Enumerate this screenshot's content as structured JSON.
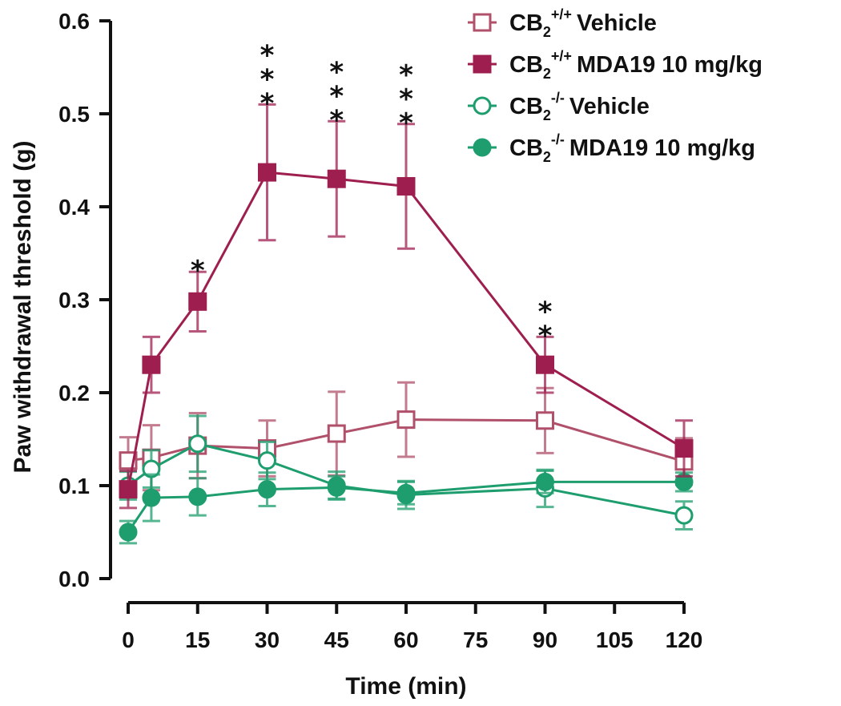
{
  "chart_data": {
    "type": "line",
    "title": "",
    "xlabel": "Time (min)",
    "ylabel": "Paw withdrawal threshold (g)",
    "xlim": [
      0,
      120
    ],
    "ylim": [
      0,
      0.6
    ],
    "x_ticks": [
      0,
      15,
      30,
      45,
      60,
      75,
      90,
      105,
      120
    ],
    "x_tick_labels": [
      "0",
      "15",
      "30",
      "45",
      "60",
      "75",
      "90",
      "105",
      "120"
    ],
    "y_ticks": [
      0.0,
      0.1,
      0.2,
      0.3,
      0.4,
      0.5,
      0.6
    ],
    "y_tick_labels": [
      "0.0",
      "0.1",
      "0.2",
      "0.3",
      "0.4",
      "0.5",
      "0.6"
    ],
    "grid": false,
    "legend_position": "top-right",
    "series": [
      {
        "name": "CB2+/+ Vehicle",
        "legend": {
          "base": "CB",
          "sub": "2",
          "sup": "+/+",
          "text": "Vehicle"
        },
        "color": "#b0506a",
        "marker": "square",
        "filled": false,
        "x": [
          0,
          5,
          15,
          30,
          45,
          60,
          90,
          120
        ],
        "y": [
          0.127,
          0.13,
          0.143,
          0.14,
          0.156,
          0.171,
          0.17,
          0.126
        ],
        "err": [
          0.025,
          0.035,
          0.035,
          0.03,
          0.045,
          0.04,
          0.035,
          0.025
        ]
      },
      {
        "name": "CB2+/+ MDA19 10 mg/kg",
        "legend": {
          "base": "CB",
          "sub": "2",
          "sup": "+/+",
          "text": "MDA19 10 mg/kg"
        },
        "color": "#9e1f4f",
        "marker": "square",
        "filled": true,
        "x": [
          0,
          5,
          15,
          30,
          45,
          60,
          90,
          120
        ],
        "y": [
          0.096,
          0.23,
          0.298,
          0.437,
          0.43,
          0.422,
          0.23,
          0.14
        ],
        "err": [
          0.02,
          0.03,
          0.032,
          0.073,
          0.062,
          0.067,
          0.03,
          0.03
        ]
      },
      {
        "name": "CB2-/- Vehicle",
        "legend": {
          "base": "CB",
          "sub": "2",
          "sup": "-/-",
          "text": "Vehicle"
        },
        "color": "#1e9e6e",
        "marker": "circle",
        "filled": false,
        "x": [
          0,
          5,
          15,
          30,
          45,
          60,
          90,
          120
        ],
        "y": [
          0.1,
          0.118,
          0.145,
          0.127,
          0.1,
          0.09,
          0.097,
          0.068
        ],
        "err": [
          0.015,
          0.02,
          0.03,
          0.02,
          0.015,
          0.015,
          0.02,
          0.015
        ]
      },
      {
        "name": "CB2-/- MDA19 10 mg/kg",
        "legend": {
          "base": "CB",
          "sub": "2",
          "sup": "-/-",
          "text": "MDA19 10 mg/kg"
        },
        "color": "#1e9e6e",
        "marker": "circle",
        "filled": true,
        "x": [
          0,
          5,
          15,
          30,
          45,
          60,
          90,
          120
        ],
        "y": [
          0.05,
          0.087,
          0.088,
          0.096,
          0.098,
          0.092,
          0.104,
          0.104
        ],
        "err": [
          0.012,
          0.025,
          0.02,
          0.018,
          0.012,
          0.012,
          0.012,
          0.01
        ]
      }
    ],
    "annotations": [
      {
        "x": 15,
        "label": "*",
        "count": 1
      },
      {
        "x": 30,
        "label": "***",
        "count": 3
      },
      {
        "x": 45,
        "label": "***",
        "count": 3
      },
      {
        "x": 60,
        "label": "***",
        "count": 3
      },
      {
        "x": 90,
        "label": "**",
        "count": 2
      }
    ]
  }
}
